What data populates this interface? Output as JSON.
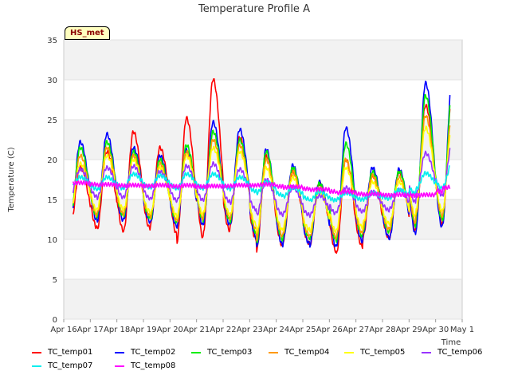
{
  "chart_data": {
    "type": "line",
    "title": "Temperature Profile A",
    "ylabel": "Temperature (C)",
    "xlabel": "Time",
    "station_label": "HS_met",
    "ylim": [
      0,
      35
    ],
    "yticks": [
      0,
      5,
      10,
      15,
      20,
      25,
      30,
      35
    ],
    "xlim": [
      "2024-04-16",
      "2024-05-01"
    ],
    "xticks": [
      "Apr 16",
      "Apr 17",
      "Apr 18",
      "Apr 19",
      "Apr 20",
      "Apr 21",
      "Apr 22",
      "Apr 23",
      "Apr 24",
      "Apr 25",
      "Apr 26",
      "Apr 27",
      "Apr 28",
      "Apr 29",
      "Apr 30",
      "May 1"
    ],
    "x_days": [
      "Apr 16",
      "Apr 17",
      "Apr 18",
      "Apr 19",
      "Apr 20",
      "Apr 21",
      "Apr 22",
      "Apr 23",
      "Apr 24",
      "Apr 25",
      "Apr 26",
      "Apr 27",
      "Apr 28",
      "Apr 29",
      "Apr 30"
    ],
    "grid": true,
    "legend_position": "bottom",
    "daily_peak_note": "daily max/min per series",
    "series": [
      {
        "name": "TC_temp01",
        "color": "#ff0000",
        "daily_max": [
          19,
          21,
          23.5,
          21.5,
          25.2,
          30.1,
          22.8,
          20.5,
          18.5,
          17,
          20,
          18,
          18.5,
          26.8,
          28.5
        ],
        "daily_min": [
          11.8,
          11.2,
          11,
          11.8,
          9.6,
          10.8,
          11.5,
          8.5,
          9.8,
          9.2,
          8,
          10.2,
          10.2,
          12,
          12
        ]
      },
      {
        "name": "TC_temp02",
        "color": "#0000ff",
        "daily_max": [
          22.2,
          23.2,
          21.5,
          20.5,
          21.2,
          24.7,
          23.8,
          21.3,
          19.3,
          17.2,
          24,
          19,
          18.8,
          29.6,
          30.1
        ],
        "daily_min": [
          12.5,
          12.3,
          12.5,
          12,
          11.5,
          12,
          11.8,
          8.8,
          9.8,
          9.2,
          9,
          10.5,
          10,
          11.2,
          11.8
        ]
      },
      {
        "name": "TC_temp03",
        "color": "#00ee00",
        "daily_max": [
          21.5,
          22.2,
          21,
          20,
          21.8,
          23.5,
          22.5,
          21,
          19,
          17,
          22,
          18.5,
          18.5,
          28,
          28.5
        ],
        "daily_min": [
          12.8,
          13,
          13,
          12.5,
          12,
          12.8,
          12.2,
          9.5,
          10.5,
          10,
          9.8,
          11,
          11,
          12.5,
          12.5
        ]
      },
      {
        "name": "TC_temp04",
        "color": "#ff9900",
        "daily_max": [
          20.5,
          21.5,
          20.5,
          19.5,
          21,
          22.5,
          21.8,
          20,
          18.5,
          16.5,
          20,
          18,
          17.8,
          25.5,
          26
        ],
        "daily_min": [
          13,
          13.2,
          13.2,
          12.8,
          12.2,
          13,
          12.5,
          10,
          10.8,
          10.3,
          10.2,
          11.3,
          11.3,
          13,
          13
        ]
      },
      {
        "name": "TC_temp05",
        "color": "#ffff00",
        "daily_max": [
          19.5,
          20.5,
          20,
          19,
          20.5,
          21.5,
          21,
          19,
          17.8,
          16,
          19,
          17.2,
          17.2,
          24,
          24.5
        ],
        "daily_min": [
          13.5,
          13.8,
          13.8,
          13.2,
          12.8,
          13.5,
          13,
          10.8,
          11.5,
          11,
          11,
          12,
          12,
          13.8,
          13.5
        ]
      },
      {
        "name": "TC_temp06",
        "color": "#9933ff",
        "daily_max": [
          18.8,
          19,
          19.2,
          18.5,
          19.2,
          19.5,
          18.8,
          17.5,
          16.5,
          15.5,
          16.5,
          16,
          16.2,
          20.8,
          22
        ],
        "daily_min": [
          15.5,
          15.2,
          15.3,
          15,
          14.8,
          15,
          14.5,
          13,
          13.2,
          13,
          13.5,
          13.5,
          13.8,
          15.5,
          15.5
        ]
      },
      {
        "name": "TC_temp07",
        "color": "#00eeee",
        "daily_max": [
          17.8,
          17.8,
          18.2,
          18,
          18.2,
          18.2,
          17.8,
          17.2,
          16.5,
          16,
          15.8,
          15.8,
          16.2,
          18.3,
          19.5
        ],
        "daily_min": [
          16.5,
          16.2,
          16.5,
          16.5,
          16.3,
          16.5,
          16.3,
          15.8,
          15.3,
          14.8,
          15,
          15,
          15.2,
          16.3,
          16.5
        ]
      },
      {
        "name": "TC_temp08",
        "color": "#ff00ff",
        "daily_max": [
          17.1,
          16.9,
          16.8,
          16.8,
          16.8,
          16.7,
          16.8,
          16.9,
          16.6,
          16.3,
          16,
          15.7,
          15.6,
          15.6,
          16.6
        ],
        "daily_min": [
          17,
          16.8,
          16.7,
          16.7,
          16.6,
          16.6,
          16.7,
          16.8,
          16.5,
          16.2,
          15.8,
          15.6,
          15.5,
          15.5,
          16.4
        ]
      }
    ]
  }
}
